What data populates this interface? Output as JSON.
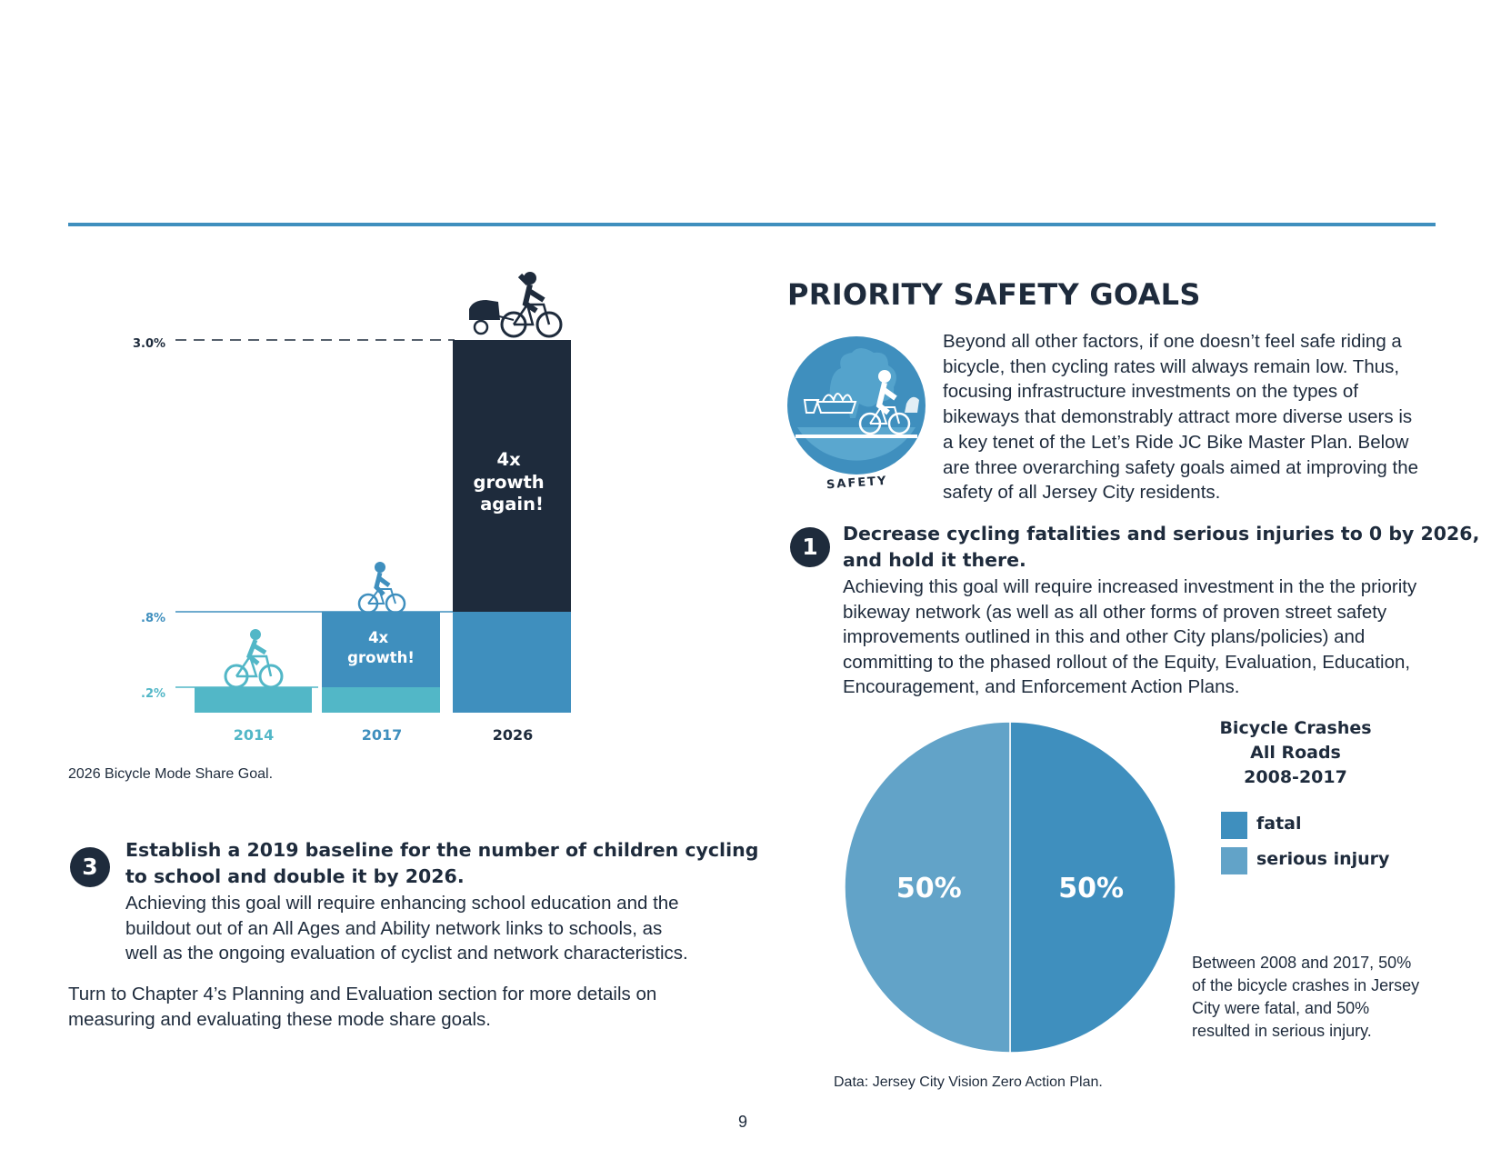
{
  "bar_chart": {
    "chart_data": {
      "type": "bar",
      "categories": [
        "2014",
        "2017",
        "2026"
      ],
      "values": [
        0.2,
        0.8,
        3.0
      ],
      "value_labels": [
        ".2%",
        ".8%",
        "3.0%"
      ],
      "annotations": [
        "4x growth!",
        "4x growth again!"
      ],
      "colors": {
        "2014": "#52b7c7",
        "2017": "#3f8fbe",
        "2026_lower": "#3f8fbe",
        "2026_upper": "#1e2b3c"
      }
    },
    "label_2017_lines": [
      "4x",
      "growth!"
    ],
    "label_2026_lines": [
      "4x",
      "growth",
      "again!"
    ],
    "caption": "2026 Bicycle Mode Share Goal."
  },
  "goal3": {
    "number": "3",
    "title_lines": [
      "Establish a 2019 baseline for the number of children cycling",
      "to school and double it by 2026."
    ],
    "body_lines": [
      "Achieving this goal will require enhancing school education and the",
      "buildout out of an All Ages and Ability network links to schools, as",
      "well as the ongoing evaluation of cyclist and network characteristics."
    ]
  },
  "chapter_note_lines": [
    "Turn to Chapter 4’s Planning and Evaluation section for more details on",
    "measuring and evaluating these mode share goals."
  ],
  "safety": {
    "heading": "PRIORITY SAFETY GOALS",
    "icon_label": "SAFETY",
    "intro_lines": [
      "Beyond all other factors, if one doesn’t feel safe riding a",
      "bicycle, then cycling rates will always remain low. Thus,",
      "focusing infrastructure investments on the types of",
      "bikeways that demonstrably attract more diverse users is",
      "a key tenet of the Let’s Ride JC Bike Master Plan. Below",
      "are three overarching safety goals aimed at improving the",
      "safety of all Jersey City residents."
    ]
  },
  "goal1": {
    "number": "1",
    "title_lines": [
      "Decrease cycling fatalities and serious injuries to 0 by 2026,",
      "and hold it there."
    ],
    "body_lines": [
      "Achieving this goal will require increased investment in the the priority",
      "bikeway network (as well as all other forms of proven street safety",
      "improvements outlined in this and other City plans/policies) and",
      "committing to the phased rollout of the Equity, Evaluation, Education,",
      "Encouragement, and Enforcement Action Plans."
    ]
  },
  "pie": {
    "chart_data": {
      "type": "pie",
      "labels": [
        "fatal",
        "serious injury"
      ],
      "values": [
        50,
        50
      ],
      "value_labels": [
        "50%",
        "50%"
      ],
      "colors": [
        "#3f8fbe",
        "#62a3c8"
      ]
    },
    "title_lines": [
      "Bicycle Crashes",
      "All Roads",
      "2008-2017"
    ],
    "note_lines": [
      "Between 2008 and 2017, 50%",
      "of the bicycle crashes in Jersey",
      "City were fatal, and 50%",
      "resulted in serious injury."
    ],
    "source": "Data: Jersey City Vision Zero Action Plan."
  },
  "page_number": "9"
}
